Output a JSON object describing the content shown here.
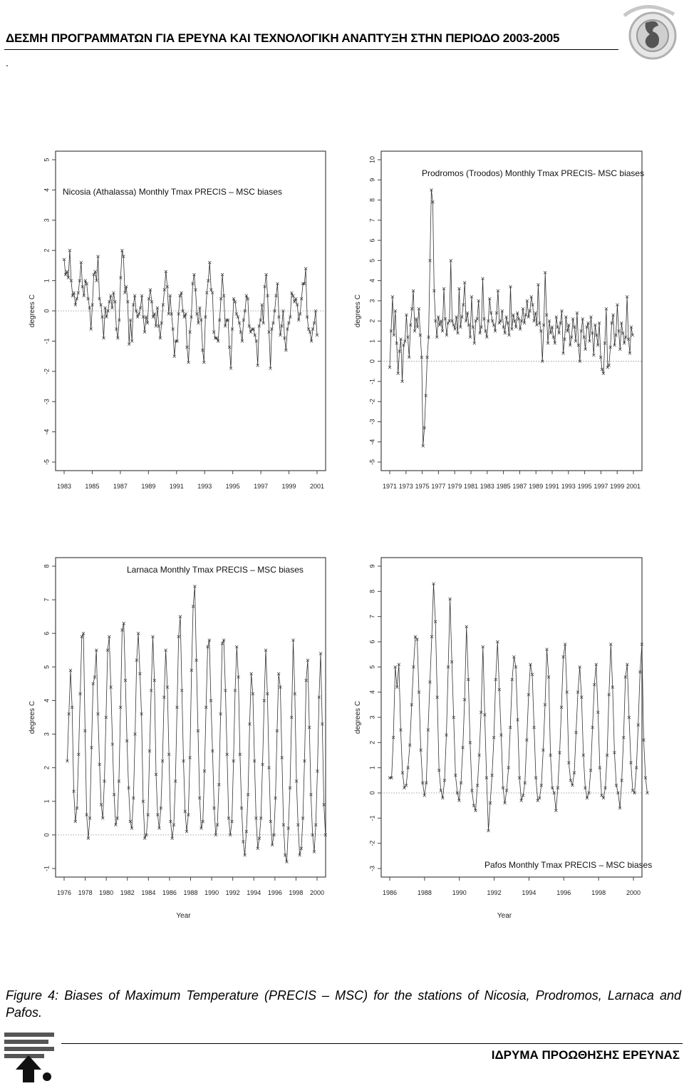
{
  "header": {
    "title": "ΔΕΣΜΗ ΠΡΟΓΡΑΜΜΑΤΩΝ ΓΙΑ ΕΡΕΥΝΑ ΚΑΙ ΤΕΧΝΟΛΟΓΙΚΗ ΑΝΑΠΤΥΞΗ ΣΤΗΝ ΠΕΡΙΟΔΟ 2003-2005",
    "dot": "."
  },
  "caption": "Figure 4: Biases of Maximum Temperature (PRECIS – MSC) for the stations of Nicosia, Prodromos, Larnaca and Pafos.",
  "footer": {
    "text": "ΙΔΡΥΜΑ ΠΡΟΩΘΗΣΗΣ ΕΡΕΥΝΑΣ"
  },
  "colors": {
    "series": "#333333",
    "zero_line": "#888888",
    "frame": "#444444"
  },
  "chart_data": [
    {
      "type": "line",
      "title": "Nicosia (Athalassa)    Monthly Tmax    PRECIS – MSC biases",
      "ylabel": "degrees C",
      "xlabel": "",
      "ylim": [
        -5,
        5
      ],
      "xlim": [
        1983,
        2001
      ],
      "yticks": [
        -5,
        -4,
        -3,
        -2,
        -1,
        0,
        1,
        2,
        3,
        4,
        5
      ],
      "xticks": [
        1983,
        1985,
        1987,
        1989,
        1991,
        1993,
        1995,
        1997,
        1999,
        2001
      ],
      "x_start": 1983.0,
      "x_end": 2001.0,
      "zero_line": true,
      "series": [
        {
          "values": [
            1.7,
            1.2,
            1.3,
            1.1,
            2.0,
            1.0,
            0.5,
            0.6,
            0.2,
            0.4,
            0.6,
            1.0,
            1.6,
            0.8,
            0.5,
            1.0,
            0.9,
            0.4,
            0.1,
            -0.6,
            0.2,
            1.2,
            1.3,
            1.0,
            1.8,
            0.4,
            0.2,
            -0.2,
            -0.9,
            0.1,
            -0.2,
            0.0,
            0.3,
            0.5,
            0.1,
            0.6,
            0.3,
            -0.6,
            -0.9,
            -0.3,
            1.1,
            2.0,
            1.8,
            0.6,
            0.8,
            0.3,
            -1.1,
            -0.3,
            -1.0,
            0.2,
            0.5,
            0.0,
            -0.2,
            -0.1,
            0.1,
            0.5,
            -0.2,
            -0.7,
            -0.2,
            -0.4,
            0.4,
            0.7,
            0.3,
            -0.2,
            -0.1,
            -0.5,
            0.1,
            -0.5,
            -0.9,
            -0.4,
            0.2,
            0.7,
            1.3,
            0.8,
            -0.1,
            0.5,
            -0.1,
            -0.6,
            -1.5,
            -1.0,
            -1.0,
            -0.1,
            0.5,
            0.6,
            0.0,
            -0.2,
            -0.1,
            -1.2,
            -1.7,
            -0.7,
            -0.2,
            0.9,
            1.2,
            0.7,
            -0.1,
            -0.4,
            0.1,
            -0.3,
            -1.3,
            -1.7,
            -0.2,
            0.6,
            1.0,
            1.6,
            0.7,
            0.6,
            -0.7,
            -0.9,
            -0.9,
            -1.0,
            -0.3,
            0.4,
            1.2,
            0.5,
            -0.5,
            -0.3,
            -0.3,
            -1.2,
            -1.9,
            -0.6,
            0.4,
            0.3,
            -0.1,
            -0.2,
            -0.4,
            -0.7,
            -1.0,
            -0.3,
            0.0,
            0.5,
            0.4,
            -0.5,
            -0.7,
            -0.6,
            -0.6,
            -0.8,
            -1.0,
            -1.8,
            -0.5,
            -0.3,
            0.2,
            -0.4,
            0.8,
            1.2,
            0.5,
            -0.7,
            -1.9,
            -0.6,
            -0.4,
            0.0,
            0.5,
            0.9,
            -0.2,
            -0.8,
            -0.5,
            0.0,
            -0.9,
            -1.3,
            -0.6,
            -0.4,
            -0.2,
            0.6,
            0.5,
            0.3,
            0.4,
            0.2,
            -0.3,
            -0.1,
            0.4,
            0.9,
            0.9,
            1.4,
            -0.2,
            -0.6,
            -0.7,
            -1.0,
            -0.6,
            -0.4,
            0.0,
            -0.8
          ]
        }
      ]
    },
    {
      "type": "line",
      "title": "Prodromos (Troodos) Monthly Tmax  PRECIS- MSC biases",
      "ylabel": "degrees C",
      "xlabel": "",
      "ylim": [
        -5,
        10
      ],
      "xlim": [
        1971,
        2001
      ],
      "yticks": [
        -5,
        -4,
        -3,
        -2,
        -1,
        0,
        1,
        2,
        3,
        4,
        5,
        6,
        7,
        8,
        9,
        10
      ],
      "xticks": [
        1971,
        1973,
        1975,
        1977,
        1979,
        1981,
        1983,
        1985,
        1987,
        1989,
        1991,
        1993,
        1995,
        1997,
        1999,
        2001
      ],
      "x_start": 1971.0,
      "x_end": 2000.9,
      "zero_line": true,
      "series": [
        {
          "values": [
            -0.3,
            1.5,
            3.2,
            1.3,
            2.5,
            0.9,
            -0.6,
            0.5,
            1.1,
            -1.0,
            0.8,
            1.0,
            2.3,
            1.2,
            0.2,
            1.8,
            2.6,
            3.5,
            1.5,
            2.1,
            1.7,
            2.6,
            1.3,
            0.2,
            -4.2,
            -3.3,
            -1.7,
            0.2,
            1.2,
            5.0,
            8.5,
            7.9,
            3.5,
            2.0,
            1.2,
            2.2,
            1.8,
            2.0,
            1.5,
            3.6,
            2.1,
            1.3,
            1.9,
            2.0,
            5.0,
            2.0,
            1.8,
            1.6,
            2.2,
            1.4,
            3.6,
            1.7,
            2.2,
            2.8,
            3.9,
            2.0,
            2.4,
            1.8,
            1.2,
            3.2,
            1.7,
            0.9,
            2.0,
            2.1,
            3.0,
            1.4,
            1.7,
            4.1,
            2.1,
            1.5,
            1.2,
            2.0,
            3.1,
            2.4,
            2.0,
            1.8,
            1.5,
            2.4,
            3.5,
            1.9,
            2.0,
            2.5,
            1.7,
            1.4,
            2.2,
            1.9,
            1.3,
            3.7,
            1.6,
            2.3,
            2.0,
            1.7,
            2.4,
            2.1,
            1.6,
            2.0,
            2.6,
            1.9,
            2.3,
            3.0,
            2.2,
            2.5,
            3.2,
            2.8,
            2.0,
            2.4,
            1.8,
            3.8,
            1.9,
            1.5,
            0.0,
            1.8,
            4.4,
            2.3,
            0.9,
            2.0,
            1.4,
            1.7,
            1.2,
            0.9,
            2.2,
            1.7,
            1.4,
            1.9,
            2.5,
            0.4,
            1.1,
            2.2,
            1.5,
            1.8,
            0.8,
            1.2,
            2.1,
            1.7,
            1.0,
            2.4,
            0.8,
            0.0,
            1.5,
            2.1,
            1.2,
            0.6,
            1.7,
            1.9,
            1.0,
            2.2,
            1.4,
            0.3,
            1.8,
            1.3,
            0.8,
            1.9,
            0.2,
            -0.4,
            -0.6,
            0.9,
            2.6,
            -0.3,
            -0.2,
            0.7,
            1.9,
            2.3,
            0.8,
            1.3,
            2.8,
            1.5,
            0.6,
            1.9,
            1.4,
            0.9,
            1.2,
            3.2,
            1.1,
            0.4,
            1.7,
            1.3
          ]
        }
      ]
    },
    {
      "type": "line",
      "title": "Larnaca   Monthly Tmax    PRECIS – MSC biases",
      "ylabel": "degrees C",
      "xlabel": "Year",
      "ylim": [
        -1,
        8
      ],
      "xlim": [
        1976,
        2000
      ],
      "yticks": [
        -1,
        0,
        1,
        2,
        3,
        4,
        5,
        6,
        7,
        8
      ],
      "xticks": [
        1976,
        1978,
        1980,
        1982,
        1984,
        1986,
        1988,
        1990,
        1992,
        1994,
        1996,
        1998,
        2000
      ],
      "x_start": 1976.3,
      "x_end": 2000.8,
      "zero_line": true,
      "series": [
        {
          "values": [
            2.2,
            3.6,
            4.9,
            3.8,
            1.3,
            0.4,
            0.8,
            2.4,
            4.2,
            5.9,
            6.0,
            3.1,
            0.6,
            -0.1,
            0.5,
            2.6,
            4.5,
            4.7,
            5.5,
            3.6,
            2.1,
            0.9,
            0.5,
            1.6,
            3.5,
            5.5,
            5.9,
            4.4,
            2.7,
            1.2,
            0.3,
            0.5,
            1.6,
            3.8,
            6.1,
            6.3,
            4.6,
            2.8,
            1.4,
            0.4,
            0.2,
            1.1,
            3.0,
            5.2,
            6.0,
            4.8,
            3.6,
            1.0,
            -0.1,
            0.0,
            0.6,
            2.5,
            4.3,
            5.9,
            4.6,
            1.8,
            0.6,
            0.2,
            0.8,
            2.2,
            4.1,
            5.5,
            4.4,
            2.4,
            0.4,
            -0.1,
            0.3,
            1.6,
            3.8,
            5.9,
            6.5,
            4.3,
            2.2,
            0.7,
            0.1,
            0.6,
            2.3,
            4.9,
            6.8,
            7.4,
            5.2,
            3.1,
            1.1,
            0.2,
            0.4,
            1.9,
            3.8,
            5.6,
            5.8,
            4.0,
            2.5,
            0.8,
            0.0,
            0.3,
            1.5,
            3.6,
            5.7,
            5.8,
            4.3,
            2.4,
            0.5,
            0.0,
            0.4,
            2.2,
            4.3,
            5.6,
            4.7,
            2.4,
            0.8,
            -0.2,
            -0.6,
            0.1,
            1.2,
            3.3,
            4.8,
            4.2,
            2.2,
            0.5,
            -0.4,
            -0.1,
            0.5,
            2.1,
            4.0,
            5.5,
            4.2,
            2.0,
            0.4,
            -0.3,
            0.0,
            1.1,
            3.1,
            4.8,
            4.4,
            2.3,
            0.3,
            -0.6,
            -0.8,
            0.2,
            1.4,
            3.5,
            5.8,
            4.2,
            1.6,
            0.3,
            -0.6,
            -0.4,
            0.5,
            2.2,
            4.6,
            5.2,
            3.2,
            1.2,
            0.0,
            -0.5,
            0.3,
            1.9,
            4.1,
            5.4,
            3.3,
            0.9,
            0.0
          ]
        }
      ]
    },
    {
      "type": "line",
      "title": "Pafos   Monthly Tmax    PRECIS – MSC biases",
      "ylabel": "degrees C",
      "xlabel": "Year",
      "ylim": [
        -3,
        9
      ],
      "xlim": [
        1986,
        2000
      ],
      "yticks": [
        -3,
        -2,
        -1,
        0,
        1,
        2,
        3,
        4,
        5,
        6,
        7,
        8,
        9
      ],
      "xticks": [
        1986,
        1988,
        1990,
        1992,
        1994,
        1996,
        1998,
        2000
      ],
      "x_start": 1986.0,
      "x_end": 2000.8,
      "zero_line": true,
      "series": [
        {
          "values": [
            0.6,
            0.6,
            2.2,
            5.0,
            4.2,
            5.1,
            2.5,
            0.8,
            0.2,
            0.3,
            1.0,
            1.9,
            3.5,
            5.0,
            6.2,
            6.1,
            4.0,
            1.7,
            0.4,
            -0.1,
            0.4,
            2.5,
            4.4,
            6.2,
            8.3,
            6.8,
            3.8,
            0.9,
            0.1,
            -0.2,
            0.5,
            2.3,
            5.0,
            7.7,
            5.2,
            3.0,
            0.7,
            0.0,
            -0.3,
            0.4,
            1.8,
            3.7,
            6.6,
            4.5,
            2.0,
            0.1,
            -0.5,
            -0.7,
            0.3,
            1.5,
            3.2,
            5.8,
            3.1,
            0.6,
            -1.5,
            -0.4,
            0.7,
            2.2,
            4.5,
            6.0,
            4.1,
            2.3,
            0.2,
            -0.4,
            0.1,
            1.0,
            2.6,
            4.5,
            5.4,
            5.0,
            2.9,
            0.6,
            -0.3,
            -0.1,
            0.4,
            2.1,
            3.9,
            5.1,
            4.7,
            2.6,
            0.6,
            -0.3,
            -0.2,
            0.3,
            1.7,
            3.5,
            5.7,
            4.6,
            1.5,
            0.2,
            0.0,
            -0.7,
            0.2,
            1.6,
            3.4,
            5.4,
            5.9,
            4.0,
            1.2,
            0.5,
            0.3,
            0.8,
            2.4,
            4.0,
            5.0,
            3.8,
            1.5,
            0.2,
            -0.2,
            0.0,
            0.9,
            2.6,
            4.3,
            5.1,
            3.2,
            1.0,
            -0.1,
            -0.2,
            0.2,
            1.5,
            3.9,
            5.9,
            4.2,
            1.6,
            0.3,
            0.0,
            -0.6,
            0.5,
            2.2,
            4.6,
            5.1,
            3.0,
            1.2,
            0.1,
            0.0,
            1.0,
            2.7,
            4.8,
            5.9,
            2.1,
            0.6,
            0.0
          ]
        }
      ]
    }
  ]
}
